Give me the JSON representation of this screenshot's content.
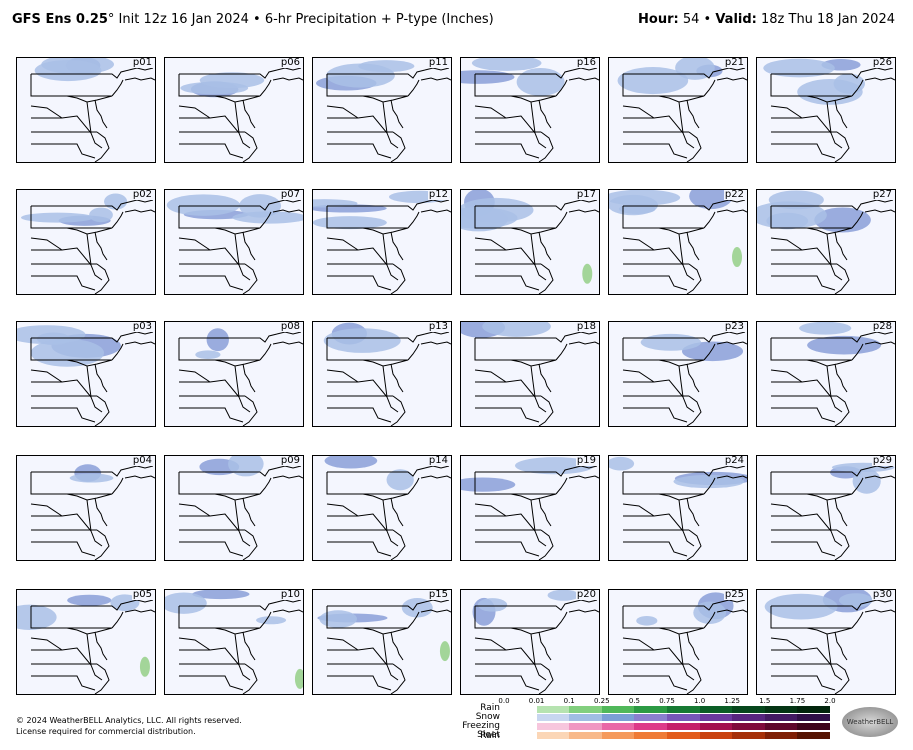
{
  "header": {
    "model": "GFS Ens 0.25",
    "degree": "°",
    "init": " Init 12z 16 Jan 2024",
    "bullet": " • ",
    "product": "6-hr Precipitation + P-type (Inches)",
    "hour_label": "Hour:",
    "hour_value": " 54",
    "valid_label": "Valid:",
    "valid_value": " 18z Thu 18 Jan 2024"
  },
  "panels": {
    "row1": [
      "p01",
      "p06",
      "p11",
      "p16",
      "p21",
      "p26"
    ],
    "row2": [
      "p02",
      "p07",
      "p12",
      "p17",
      "p22",
      "p27"
    ],
    "row3": [
      "p03",
      "p08",
      "p13",
      "p18",
      "p23",
      "p28"
    ],
    "row4": [
      "p04",
      "p09",
      "p14",
      "p19",
      "p24",
      "p29"
    ],
    "row5": [
      "p05",
      "p10",
      "p15",
      "p20",
      "p25",
      "p30"
    ]
  },
  "legend": {
    "ticks": [
      "0.0",
      "0.01",
      "0.1",
      "0.25",
      "0.5",
      "0.75",
      "1.0",
      "1.25",
      "1.5",
      "1.75",
      "2.0"
    ],
    "rows": [
      "Rain",
      "Snow",
      "Freezing Rain",
      "Sleet"
    ],
    "colors": {
      "rain": [
        "#ffffff",
        "#b6e3b0",
        "#82cf7e",
        "#50b85a",
        "#2c9a44",
        "#177a33",
        "#0b5e26",
        "#06471c",
        "#043514",
        "#02250c"
      ],
      "snow": [
        "#ffffff",
        "#c7d6ef",
        "#a0bde3",
        "#7b9fd6",
        "#8a7fcf",
        "#7757b9",
        "#6a3a9e",
        "#57267f",
        "#431a63",
        "#2f0f47"
      ],
      "frz": [
        "#ffffff",
        "#f7c6dd",
        "#f097c2",
        "#e968a7",
        "#dd3a89",
        "#c51e6a",
        "#a3104f",
        "#800a3c",
        "#5e062b",
        "#3e031b"
      ],
      "sleet": [
        "#ffffff",
        "#fbd6b6",
        "#f8b98a",
        "#f59a5c",
        "#ef7b36",
        "#e25c1b",
        "#c9420f",
        "#a63009",
        "#7f2006",
        "#571403"
      ]
    }
  },
  "footer": {
    "line1": "© 2024 WeatherBELL Analytics, LLC. All rights reserved.",
    "line2": "License required for commercial distribution."
  },
  "logo": {
    "text": "WeatherBELL"
  }
}
